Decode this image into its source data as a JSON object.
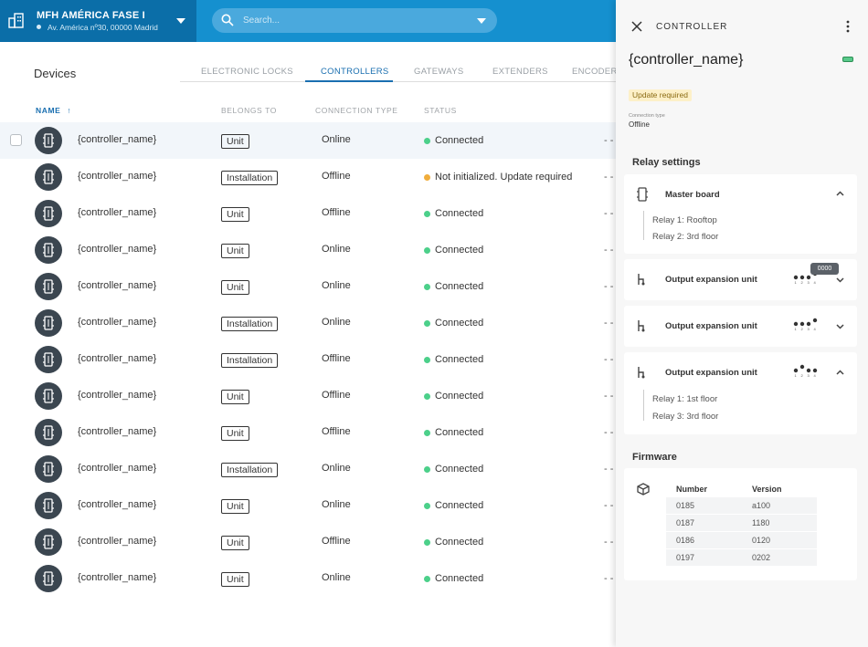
{
  "project": {
    "name": "MFH AMÉRICA FASE I",
    "address": "Av. América nº30, 00000 Madrid"
  },
  "search": {
    "placeholder": "Search..."
  },
  "main": {
    "title": "Devices",
    "tabs": [
      "ELECTRONIC LOCKS",
      "CONTROLLERS",
      "GATEWAYS",
      "EXTENDERS",
      "ENCODERS"
    ],
    "active_tab": "CONTROLLERS",
    "columns": {
      "name": "NAME",
      "sort_arrow": "↑",
      "belongs": "BELONGS TO",
      "connection": "CONNECTION TYPE",
      "status": "STATUS"
    },
    "rows": [
      {
        "name": "{controller_name}",
        "belongs": "Unit",
        "connection": "Online",
        "status": "Connected",
        "status_color": "#4cd08a",
        "extra": "- -"
      },
      {
        "name": "{controller_name}",
        "belongs": "Installation",
        "connection": "Offline",
        "status": "Not initialized. Update required",
        "status_color": "#f0ad3c",
        "extra": "- -"
      },
      {
        "name": "{controller_name}",
        "belongs": "Unit",
        "connection": "Offline",
        "status": "Connected",
        "status_color": "#4cd08a",
        "extra": "- -"
      },
      {
        "name": "{controller_name}",
        "belongs": "Unit",
        "connection": "Online",
        "status": "Connected",
        "status_color": "#4cd08a",
        "extra": "- -"
      },
      {
        "name": "{controller_name}",
        "belongs": "Unit",
        "connection": "Online",
        "status": "Connected",
        "status_color": "#4cd08a",
        "extra": "- -"
      },
      {
        "name": "{controller_name}",
        "belongs": "Installation",
        "connection": "Online",
        "status": "Connected",
        "status_color": "#4cd08a",
        "extra": "- -"
      },
      {
        "name": "{controller_name}",
        "belongs": "Installation",
        "connection": "Offline",
        "status": "Connected",
        "status_color": "#4cd08a",
        "extra": "- -"
      },
      {
        "name": "{controller_name}",
        "belongs": "Unit",
        "connection": "Offline",
        "status": "Connected",
        "status_color": "#4cd08a",
        "extra": "- -"
      },
      {
        "name": "{controller_name}",
        "belongs": "Unit",
        "connection": "Offline",
        "status": "Connected",
        "status_color": "#4cd08a",
        "extra": "- -"
      },
      {
        "name": "{controller_name}",
        "belongs": "Installation",
        "connection": "Online",
        "status": "Connected",
        "status_color": "#4cd08a",
        "extra": "- -"
      },
      {
        "name": "{controller_name}",
        "belongs": "Unit",
        "connection": "Online",
        "status": "Connected",
        "status_color": "#4cd08a",
        "extra": "- -"
      },
      {
        "name": "{controller_name}",
        "belongs": "Unit",
        "connection": "Offline",
        "status": "Connected",
        "status_color": "#4cd08a",
        "extra": "- -"
      },
      {
        "name": "{controller_name}",
        "belongs": "Unit",
        "connection": "Online",
        "status": "Connected",
        "status_color": "#4cd08a",
        "extra": "- -"
      }
    ]
  },
  "panel": {
    "header": "CONTROLLER",
    "title": "{controller_name}",
    "badge": "Update required",
    "connection_type_label": "Connection type",
    "connection_type_value": "Offline",
    "relay_settings_title": "Relay settings",
    "master_board": {
      "title": "Master board",
      "relays": [
        "Relay 1: Rooftop",
        "Relay 2: 3rd floor"
      ]
    },
    "expansion_units": [
      {
        "title": "Output expansion unit",
        "tooltip": "0000",
        "relays": []
      },
      {
        "title": "Output expansion unit",
        "relays": []
      },
      {
        "title": "Output expansion unit",
        "relays": [
          "Relay 1: 1st floor",
          "Relay 3: 3rd floor"
        ]
      }
    ],
    "dip_labels": [
      "1",
      "2",
      "3",
      "4"
    ],
    "firmware_title": "Firmware",
    "firmware": {
      "headers": [
        "Number",
        "Version"
      ],
      "rows": [
        [
          "0185",
          "a100"
        ],
        [
          "0187",
          "1180"
        ],
        [
          "0186",
          "0120"
        ],
        [
          "0197",
          "0202"
        ]
      ]
    }
  }
}
